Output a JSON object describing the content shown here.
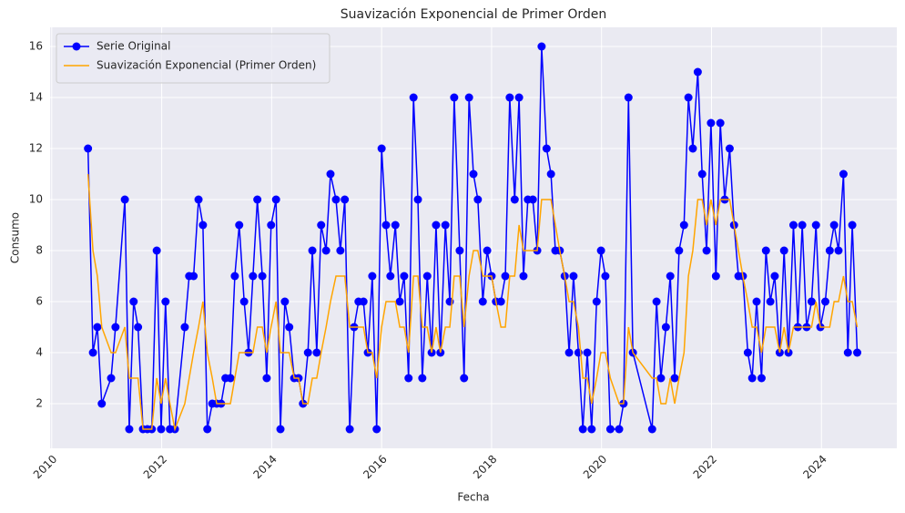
{
  "chart_data": {
    "type": "line",
    "title": "Suavización Exponencial de Primer Orden",
    "xlabel": "Fecha",
    "ylabel": "Consumo",
    "x": [
      2010.66,
      2010.75,
      2010.83,
      2010.91,
      2011.08,
      2011.16,
      2011.33,
      2011.41,
      2011.49,
      2011.57,
      2011.66,
      2011.74,
      2011.82,
      2011.91,
      2011.99,
      2012.07,
      2012.15,
      2012.24,
      2012.42,
      2012.5,
      2012.58,
      2012.67,
      2012.75,
      2012.83,
      2012.92,
      2013.0,
      2013.08,
      2013.16,
      2013.25,
      2013.33,
      2013.41,
      2013.5,
      2013.58,
      2013.66,
      2013.74,
      2013.83,
      2013.91,
      2013.99,
      2014.08,
      2014.16,
      2014.24,
      2014.32,
      2014.41,
      2014.49,
      2014.57,
      2014.66,
      2014.74,
      2014.82,
      2014.9,
      2014.99,
      2015.07,
      2015.17,
      2015.25,
      2015.33,
      2015.42,
      2015.5,
      2015.58,
      2015.67,
      2015.75,
      2015.83,
      2015.91,
      2016.0,
      2016.08,
      2016.16,
      2016.25,
      2016.33,
      2016.41,
      2016.49,
      2016.58,
      2016.66,
      2016.74,
      2016.83,
      2016.91,
      2016.99,
      2017.07,
      2017.16,
      2017.24,
      2017.32,
      2017.42,
      2017.5,
      2017.59,
      2017.67,
      2017.75,
      2017.84,
      2017.92,
      2018.0,
      2018.08,
      2018.17,
      2018.25,
      2018.33,
      2018.42,
      2018.5,
      2018.58,
      2018.66,
      2018.75,
      2018.83,
      2018.91,
      2019.0,
      2019.08,
      2019.16,
      2019.24,
      2019.33,
      2019.41,
      2019.49,
      2019.58,
      2019.66,
      2019.74,
      2019.82,
      2019.91,
      2019.99,
      2020.07,
      2020.16,
      2020.32,
      2020.4,
      2020.49,
      2020.57,
      2020.92,
      2021.0,
      2021.08,
      2021.17,
      2021.25,
      2021.33,
      2021.41,
      2021.5,
      2021.58,
      2021.66,
      2021.75,
      2021.83,
      2021.91,
      2021.99,
      2022.08,
      2022.16,
      2022.24,
      2022.33,
      2022.41,
      2022.49,
      2022.57,
      2022.66,
      2022.74,
      2022.82,
      2022.91,
      2022.99,
      2023.07,
      2023.15,
      2023.24,
      2023.32,
      2023.4,
      2023.49,
      2023.57,
      2023.65,
      2023.73,
      2023.82,
      2023.9,
      2023.98,
      2024.07,
      2024.15,
      2024.23,
      2024.31,
      2024.4,
      2024.48,
      2024.56,
      2024.65
    ],
    "series": [
      {
        "name": "Serie Original",
        "color": "#0000ff",
        "marker": "o",
        "values": [
          12,
          4,
          5,
          2,
          3,
          5,
          10,
          1,
          6,
          5,
          1,
          1,
          1,
          8,
          1,
          6,
          1,
          1,
          5,
          7,
          7,
          10,
          9,
          1,
          2,
          2,
          2,
          3,
          3,
          7,
          9,
          6,
          4,
          7,
          10,
          7,
          3,
          9,
          10,
          1,
          6,
          5,
          3,
          3,
          2,
          4,
          8,
          4,
          9,
          8,
          11,
          10,
          8,
          10,
          1,
          5,
          6,
          6,
          4,
          7,
          1,
          12,
          9,
          7,
          9,
          6,
          7,
          3,
          14,
          10,
          3,
          7,
          4,
          9,
          4,
          9,
          6,
          14,
          8,
          3,
          14,
          11,
          10,
          6,
          8,
          7,
          6,
          6,
          7,
          14,
          10,
          14,
          7,
          10,
          10,
          8,
          16,
          12,
          11,
          8,
          8,
          7,
          4,
          7,
          4,
          1,
          4,
          1,
          6,
          8,
          7,
          1,
          1,
          2,
          14,
          4,
          1,
          6,
          3,
          5,
          7,
          3,
          8,
          9,
          14,
          12,
          15,
          11,
          8,
          13,
          7,
          13,
          10,
          12,
          9,
          7,
          7,
          4,
          3,
          6,
          3,
          8,
          6,
          7,
          4,
          8,
          4,
          9,
          5,
          9,
          5,
          6,
          9,
          5,
          6,
          8,
          9,
          8,
          11,
          4,
          9,
          4
        ]
      },
      {
        "name": "Suavización Exponencial (Primer Orden)",
        "color": "#ffa500",
        "values": [
          11,
          8,
          7,
          5,
          4,
          4,
          5,
          3,
          3,
          3,
          1,
          1,
          1,
          3,
          2,
          3,
          2,
          1,
          2,
          3,
          4,
          5,
          6,
          4,
          3,
          2,
          2,
          2,
          2,
          3,
          4,
          4,
          4,
          4,
          5,
          5,
          4,
          5,
          6,
          4,
          4,
          4,
          3,
          3,
          2,
          2,
          3,
          3,
          4,
          5,
          6,
          7,
          7,
          7,
          5,
          5,
          5,
          5,
          4,
          4,
          3,
          5,
          6,
          6,
          6,
          5,
          5,
          4,
          7,
          7,
          5,
          5,
          4,
          5,
          4,
          5,
          5,
          7,
          7,
          5,
          7,
          8,
          8,
          7,
          7,
          7,
          6,
          5,
          5,
          7,
          7,
          9,
          8,
          8,
          8,
          8,
          10,
          10,
          10,
          9,
          8,
          7,
          6,
          6,
          5,
          3,
          3,
          2,
          3,
          4,
          4,
          3,
          2,
          2,
          5,
          4,
          3,
          3,
          2,
          2,
          3,
          2,
          3,
          4,
          7,
          8,
          10,
          10,
          9,
          10,
          9,
          10,
          10,
          10,
          9,
          8,
          7,
          6,
          5,
          5,
          4,
          5,
          5,
          5,
          4,
          5,
          4,
          5,
          5,
          5,
          5,
          5,
          6,
          5,
          5,
          5,
          6,
          6,
          7,
          6,
          6,
          5
        ]
      }
    ],
    "xlim": [
      2009.97,
      2025.37
    ],
    "xticks": [
      2010,
      2012,
      2014,
      2016,
      2018,
      2020,
      2022,
      2024
    ],
    "ylim": [
      0.25,
      16.75
    ],
    "yticks": [
      2,
      4,
      6,
      8,
      10,
      12,
      14,
      16
    ],
    "grid": true,
    "legend": "upper left"
  }
}
